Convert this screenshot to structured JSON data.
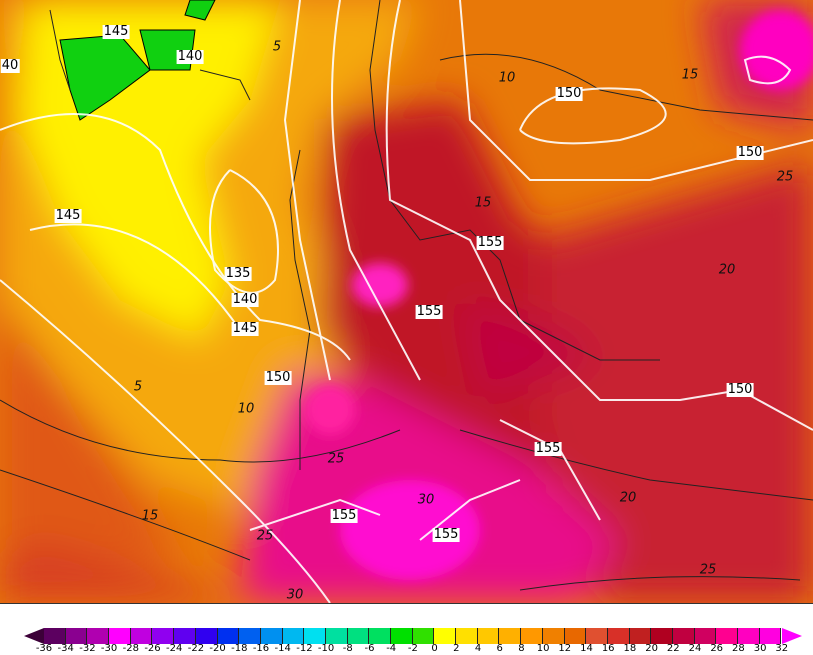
{
  "map": {
    "height_contour_labels": [
      "145",
      "140",
      "40",
      "150",
      "150",
      "145",
      "155",
      "135",
      "140",
      "145",
      "155",
      "150",
      "150",
      "155",
      "155",
      "155"
    ],
    "temperature_contour_labels": [
      "5",
      "10",
      "15",
      "15",
      "20",
      "5",
      "10",
      "25",
      "30",
      "20",
      "15",
      "25",
      "25",
      "30",
      "25"
    ]
  },
  "colorbar": {
    "ticks": [
      "-36",
      "-34",
      "-32",
      "-30",
      "-28",
      "-26",
      "-24",
      "-22",
      "-20",
      "-18",
      "-16",
      "-14",
      "-12",
      "-10",
      "-8",
      "-6",
      "-4",
      "-2",
      "0",
      "2",
      "4",
      "6",
      "8",
      "10",
      "12",
      "14",
      "16",
      "18",
      "20",
      "22",
      "24",
      "26",
      "28",
      "30",
      "32"
    ],
    "low_arrow_color": "#3c0038",
    "high_arrow_color": "#ff00ff",
    "colors": [
      "#5c0060",
      "#8a0090",
      "#b000b0",
      "#ff00ff",
      "#c000e0",
      "#9000f0",
      "#6000f0",
      "#3000f0",
      "#0030f0",
      "#0060f0",
      "#0090f0",
      "#00b8f0",
      "#00e0f0",
      "#00e0a0",
      "#00e080",
      "#00e060",
      "#00e000",
      "#30e000",
      "#ffff00",
      "#ffe000",
      "#ffc800",
      "#ffb000",
      "#ff9800",
      "#f08000",
      "#e86800",
      "#e05030",
      "#d83028",
      "#c02020",
      "#b00020",
      "#c00040",
      "#d00060",
      "#ff0090",
      "#ff00c0",
      "#ff00e0"
    ]
  }
}
